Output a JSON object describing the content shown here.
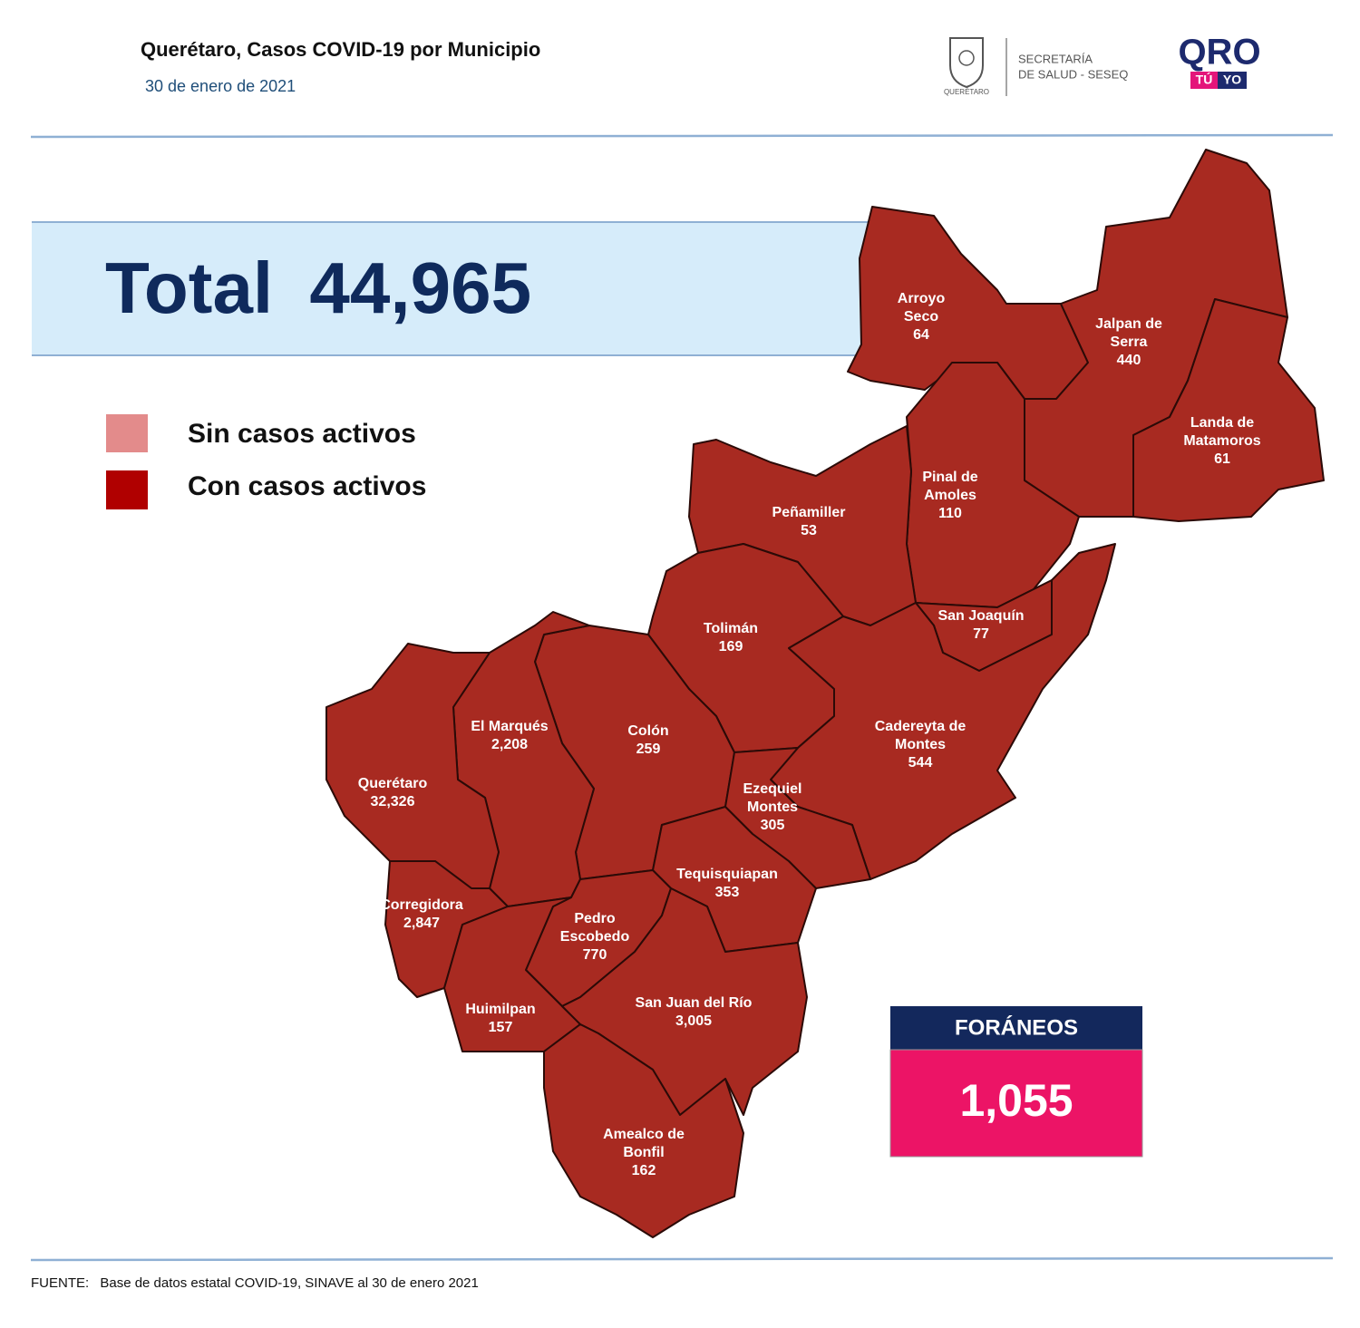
{
  "header": {
    "title": "Querétaro, Casos COVID-19 por Municipio",
    "date": "30 de enero de 2021"
  },
  "logos": {
    "state": "QUERÉTARO",
    "secretaria_line1": "SECRETARÍA",
    "secretaria_line2": "DE SALUD - SESEQ",
    "qro": "QRO",
    "tu": "TÚ",
    "yo": "YO"
  },
  "total": {
    "label": "Total",
    "value": "44,965"
  },
  "legend": [
    "Sin casos activos",
    "Con casos activos"
  ],
  "municipalities": [
    {
      "name_lines": [
        "Arroyo",
        "Seco"
      ],
      "cases": "64"
    },
    {
      "name_lines": [
        "Jalpan de",
        "Serra"
      ],
      "cases": "440"
    },
    {
      "name_lines": [
        "Landa de",
        "Matamoros"
      ],
      "cases": "61"
    },
    {
      "name_lines": [
        "Pinal de",
        "Amoles"
      ],
      "cases": "110"
    },
    {
      "name_lines": [
        "Peñamiller"
      ],
      "cases": "53"
    },
    {
      "name_lines": [
        "Tolimán"
      ],
      "cases": "169"
    },
    {
      "name_lines": [
        "San Joaquín"
      ],
      "cases": "77"
    },
    {
      "name_lines": [
        "Cadereyta de",
        "Montes"
      ],
      "cases": "544"
    },
    {
      "name_lines": [
        "Colón"
      ],
      "cases": "259"
    },
    {
      "name_lines": [
        "El  Marqués"
      ],
      "cases": "2,208"
    },
    {
      "name_lines": [
        "Querétaro"
      ],
      "cases": "32,326"
    },
    {
      "name_lines": [
        "Corregidora"
      ],
      "cases": "2,847"
    },
    {
      "name_lines": [
        "Ezequiel",
        "Montes"
      ],
      "cases": "305"
    },
    {
      "name_lines": [
        "Tequisquiapan"
      ],
      "cases": "353"
    },
    {
      "name_lines": [
        "Pedro",
        "Escobedo"
      ],
      "cases": "770"
    },
    {
      "name_lines": [
        "Huimilpan"
      ],
      "cases": "157"
    },
    {
      "name_lines": [
        "San Juan del Río"
      ],
      "cases": "3,005"
    },
    {
      "name_lines": [
        "Amealco de",
        "Bonfil"
      ],
      "cases": "162"
    }
  ],
  "foraneos": {
    "label": "FORÁNEOS",
    "value": "1,055"
  },
  "source": {
    "label": "FUENTE:",
    "text": "Base de datos estatal COVID-19,  SINAVE  al 30 de enero 2021"
  }
}
